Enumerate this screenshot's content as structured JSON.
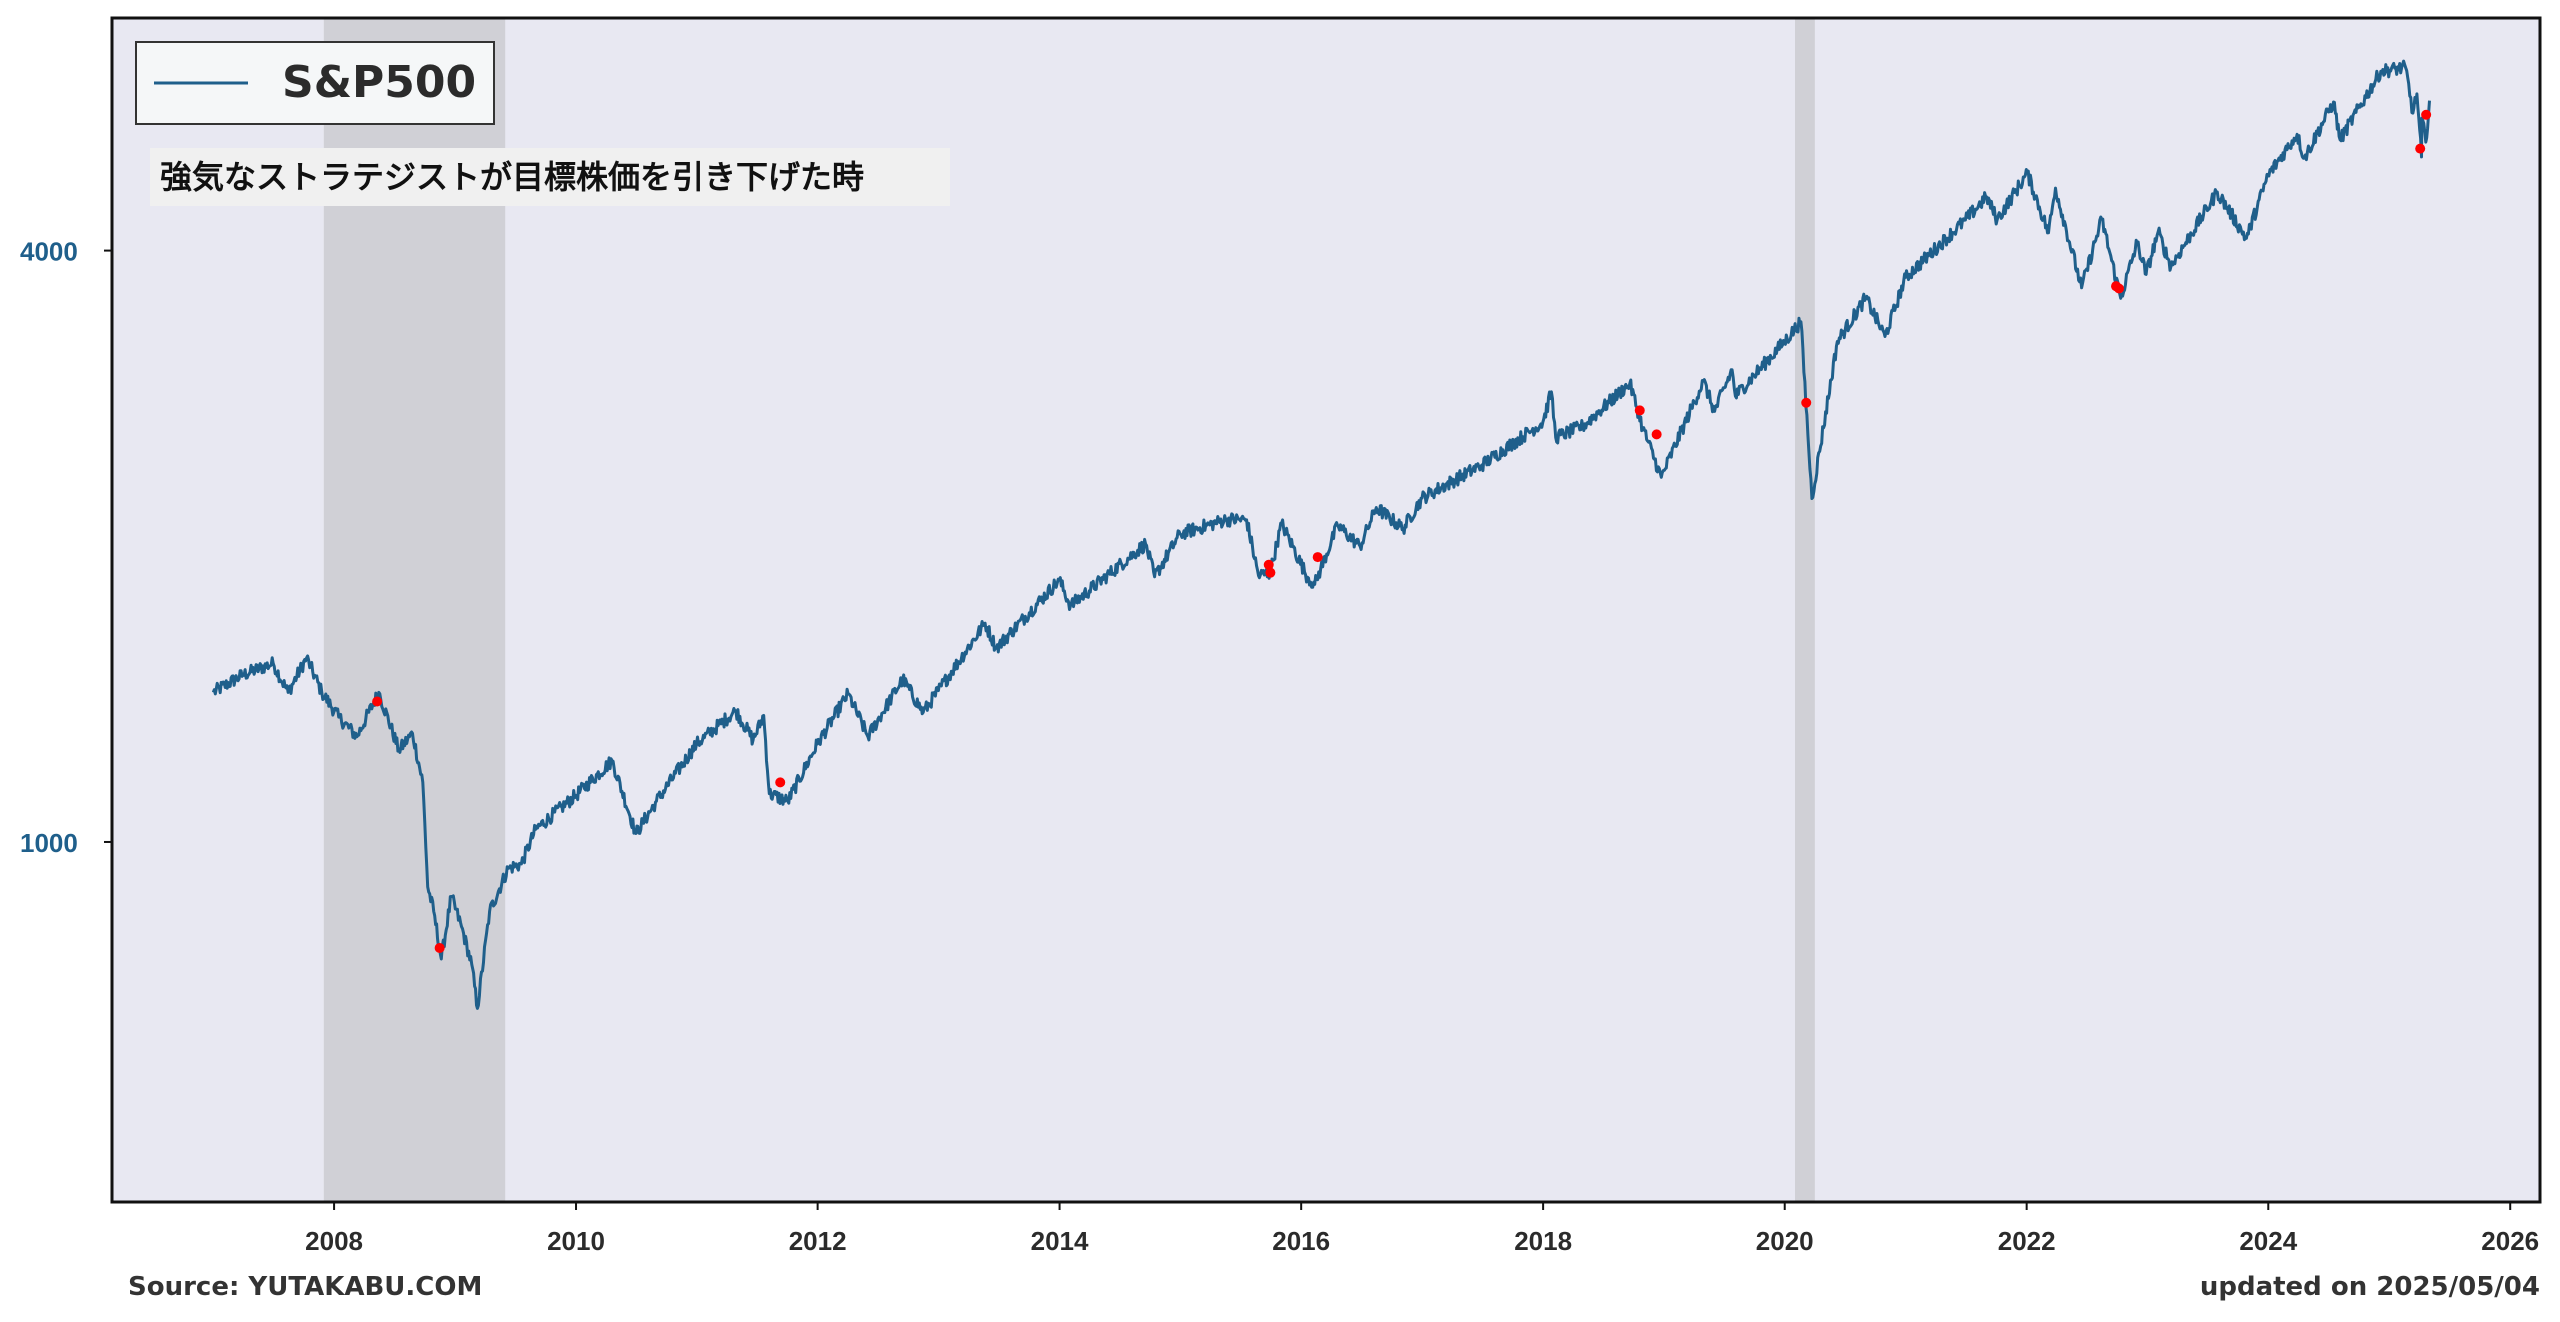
{
  "chart_data": {
    "type": "line",
    "title": "",
    "xlabel": "",
    "ylabel": "",
    "y_scale": "log",
    "ylim": [
      430,
      6900
    ],
    "xlim": [
      "2006-03-01",
      "2026-04-01"
    ],
    "x_ticks": [
      "2008",
      "2010",
      "2012",
      "2014",
      "2016",
      "2018",
      "2020",
      "2022",
      "2024",
      "2026"
    ],
    "y_ticks": [
      1000,
      4000
    ],
    "y_tick_labels": [
      "1000",
      "4000"
    ],
    "legend": {
      "placement": "top-left",
      "entries": [
        "S&P500"
      ]
    },
    "annotation": "強気なストラテジストが目標株価を引き下げた時",
    "grid": false,
    "colors": {
      "line": "#1f5f8b",
      "marker": "#ff0000",
      "background": "#e8e8f2",
      "shade": "#c8c8cc",
      "tick_label": "#1f5f8b"
    },
    "shaded_periods": [
      {
        "start": "2007-12-01",
        "end": "2009-06-01"
      },
      {
        "start": "2020-02-01",
        "end": "2020-04-01"
      }
    ],
    "series": [
      {
        "name": "S&P500",
        "points": [
          [
            "2007-01-01",
            1420
          ],
          [
            "2007-04-01",
            1480
          ],
          [
            "2007-07-01",
            1520
          ],
          [
            "2007-08-15",
            1420
          ],
          [
            "2007-10-10",
            1540
          ],
          [
            "2007-11-25",
            1420
          ],
          [
            "2008-01-15",
            1340
          ],
          [
            "2008-03-10",
            1280
          ],
          [
            "2008-05-15",
            1420
          ],
          [
            "2008-07-15",
            1240
          ],
          [
            "2008-08-25",
            1290
          ],
          [
            "2008-09-25",
            1150
          ],
          [
            "2008-10-10",
            900
          ],
          [
            "2008-10-28",
            850
          ],
          [
            "2008-11-20",
            760
          ],
          [
            "2008-12-20",
            880
          ],
          [
            "2009-01-20",
            820
          ],
          [
            "2009-02-20",
            750
          ],
          [
            "2009-03-09",
            677
          ],
          [
            "2009-04-15",
            850
          ],
          [
            "2009-06-10",
            940
          ],
          [
            "2009-07-20",
            950
          ],
          [
            "2009-09-01",
            1030
          ],
          [
            "2009-12-31",
            1115
          ],
          [
            "2010-04-20",
            1210
          ],
          [
            "2010-07-01",
            1020
          ],
          [
            "2010-09-01",
            1100
          ],
          [
            "2010-12-31",
            1258
          ],
          [
            "2011-04-29",
            1360
          ],
          [
            "2011-06-20",
            1270
          ],
          [
            "2011-07-22",
            1345
          ],
          [
            "2011-08-08",
            1120
          ],
          [
            "2011-10-03",
            1100
          ],
          [
            "2011-12-31",
            1258
          ],
          [
            "2012-04-02",
            1415
          ],
          [
            "2012-06-01",
            1280
          ],
          [
            "2012-09-14",
            1465
          ],
          [
            "2012-11-15",
            1355
          ],
          [
            "2012-12-31",
            1426
          ],
          [
            "2013-05-21",
            1670
          ],
          [
            "2013-06-24",
            1575
          ],
          [
            "2013-12-31",
            1848
          ],
          [
            "2014-02-03",
            1740
          ],
          [
            "2014-09-18",
            2011
          ],
          [
            "2014-10-15",
            1862
          ],
          [
            "2014-12-31",
            2059
          ],
          [
            "2015-05-21",
            2130
          ],
          [
            "2015-07-20",
            2128
          ],
          [
            "2015-08-25",
            1867
          ],
          [
            "2015-09-29",
            1880
          ],
          [
            "2015-11-03",
            2110
          ],
          [
            "2016-01-20",
            1860
          ],
          [
            "2016-02-11",
            1829
          ],
          [
            "2016-04-20",
            2100
          ],
          [
            "2016-06-27",
            2000
          ],
          [
            "2016-08-15",
            2190
          ],
          [
            "2016-11-04",
            2085
          ],
          [
            "2016-12-31",
            2239
          ],
          [
            "2017-06-30",
            2420
          ],
          [
            "2017-12-31",
            2674
          ],
          [
            "2018-01-26",
            2873
          ],
          [
            "2018-02-08",
            2581
          ],
          [
            "2018-05-01",
            2650
          ],
          [
            "2018-09-20",
            2930
          ],
          [
            "2018-10-29",
            2641
          ],
          [
            "2018-12-24",
            2351
          ],
          [
            "2019-04-30",
            2945
          ],
          [
            "2019-06-03",
            2744
          ],
          [
            "2019-07-26",
            3025
          ],
          [
            "2019-08-05",
            2844
          ],
          [
            "2019-12-31",
            3231
          ],
          [
            "2020-02-19",
            3386
          ],
          [
            "2020-03-23",
            2237
          ],
          [
            "2020-06-08",
            3232
          ],
          [
            "2020-09-02",
            3580
          ],
          [
            "2020-10-30",
            3270
          ],
          [
            "2020-12-31",
            3756
          ],
          [
            "2021-06-30",
            4297
          ],
          [
            "2021-09-02",
            4537
          ],
          [
            "2021-10-04",
            4300
          ],
          [
            "2022-01-03",
            4796
          ],
          [
            "2022-03-08",
            4170
          ],
          [
            "2022-03-29",
            4631
          ],
          [
            "2022-06-16",
            3666
          ],
          [
            "2022-08-16",
            4305
          ],
          [
            "2022-10-12",
            3577
          ],
          [
            "2022-12-01",
            4076
          ],
          [
            "2022-12-28",
            3783
          ],
          [
            "2023-02-02",
            4179
          ],
          [
            "2023-03-13",
            3855
          ],
          [
            "2023-07-31",
            4589
          ],
          [
            "2023-10-27",
            4117
          ],
          [
            "2023-12-31",
            4770
          ],
          [
            "2024-03-28",
            5254
          ],
          [
            "2024-04-19",
            4967
          ],
          [
            "2024-07-16",
            5667
          ],
          [
            "2024-08-05",
            5186
          ],
          [
            "2024-12-06",
            6090
          ],
          [
            "2025-02-19",
            6144
          ],
          [
            "2025-03-13",
            5521
          ],
          [
            "2025-03-25",
            5776
          ],
          [
            "2025-04-08",
            4982
          ],
          [
            "2025-04-09",
            5457
          ],
          [
            "2025-04-21",
            5158
          ],
          [
            "2025-05-02",
            5686
          ]
        ]
      }
    ],
    "markers": [
      [
        "2008-05-10",
        1390
      ],
      [
        "2008-11-15",
        780
      ],
      [
        "2011-09-10",
        1150
      ],
      [
        "2015-09-25",
        1915
      ],
      [
        "2015-09-30",
        1880
      ],
      [
        "2016-02-20",
        1950
      ],
      [
        "2018-10-20",
        2750
      ],
      [
        "2018-12-10",
        2600
      ],
      [
        "2020-03-06",
        2800
      ],
      [
        "2022-09-28",
        3680
      ],
      [
        "2022-10-07",
        3660
      ],
      [
        "2025-04-04",
        5080
      ],
      [
        "2025-04-22",
        5500
      ]
    ]
  },
  "footer": {
    "source": "Source: YUTAKABU.COM",
    "updated": "updated on 2025/05/04"
  }
}
